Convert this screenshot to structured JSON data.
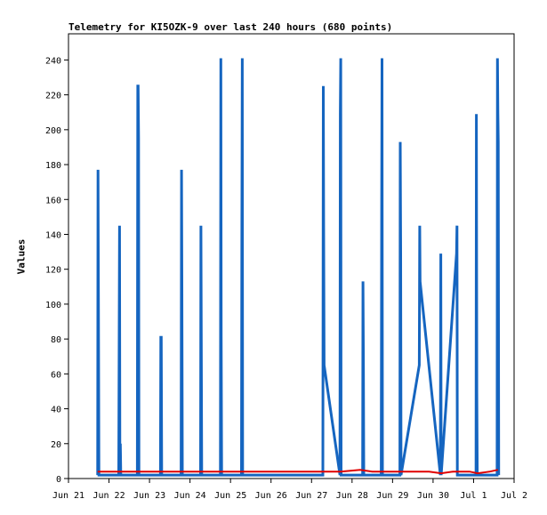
{
  "chart_data": {
    "type": "line",
    "title": "Telemetry for KI5OZK-9 over last 240 hours (680 points)",
    "xlabel": "",
    "ylabel": "Values",
    "ylim": [
      0,
      255
    ],
    "yticks": [
      0,
      20,
      40,
      60,
      80,
      100,
      120,
      140,
      160,
      180,
      200,
      220,
      240
    ],
    "ytick_labels": [
      "0",
      "20",
      "40",
      "60",
      "80",
      "100",
      "120",
      "140",
      "160",
      "180",
      "200",
      "220",
      "240"
    ],
    "xlim_days": [
      0,
      11
    ],
    "xtick_labels": [
      "Jun 21",
      "Jun 22",
      "Jun 23",
      "Jun 24",
      "Jun 25",
      "Jun 26",
      "Jun 27",
      "Jun 28",
      "Jun 29",
      "Jun 30",
      "Jul 1",
      "Jul 2"
    ],
    "grid": false,
    "series": [
      {
        "color": "#1565c0",
        "width": 3,
        "points": [
          [
            0.72,
            2
          ],
          [
            0.73,
            177
          ],
          [
            0.74,
            97
          ],
          [
            0.75,
            2
          ],
          [
            1.24,
            2
          ],
          [
            1.25,
            65
          ],
          [
            1.26,
            145
          ],
          [
            1.27,
            2
          ],
          [
            1.28,
            20
          ],
          [
            1.29,
            2
          ],
          [
            1.7,
            2
          ],
          [
            1.71,
            225
          ],
          [
            1.72,
            225
          ],
          [
            1.73,
            195
          ],
          [
            1.74,
            2
          ],
          [
            2.27,
            2
          ],
          [
            2.28,
            81
          ],
          [
            2.29,
            81
          ],
          [
            2.3,
            2
          ],
          [
            2.78,
            2
          ],
          [
            2.79,
            177
          ],
          [
            2.8,
            112
          ],
          [
            2.81,
            2
          ],
          [
            3.26,
            2
          ],
          [
            3.27,
            145
          ],
          [
            3.28,
            65
          ],
          [
            3.29,
            2
          ],
          [
            3.75,
            2
          ],
          [
            3.76,
            241
          ],
          [
            3.77,
            81
          ],
          [
            3.78,
            2
          ],
          [
            4.27,
            2
          ],
          [
            4.28,
            137
          ],
          [
            4.29,
            241
          ],
          [
            4.3,
            2
          ],
          [
            6.28,
            2
          ],
          [
            6.29,
            225
          ],
          [
            6.3,
            145
          ],
          [
            6.31,
            65
          ],
          [
            6.7,
            2
          ],
          [
            6.71,
            209
          ],
          [
            6.72,
            241
          ],
          [
            6.73,
            2
          ],
          [
            7.26,
            2
          ],
          [
            7.27,
            113
          ],
          [
            7.28,
            65
          ],
          [
            7.29,
            2
          ],
          [
            7.72,
            2
          ],
          [
            7.73,
            153
          ],
          [
            7.74,
            241
          ],
          [
            7.75,
            2
          ],
          [
            8.18,
            2
          ],
          [
            8.19,
            193
          ],
          [
            8.2,
            129
          ],
          [
            8.21,
            2
          ],
          [
            8.66,
            65
          ],
          [
            8.67,
            145
          ],
          [
            8.68,
            113
          ],
          [
            9.18,
            2
          ],
          [
            9.19,
            129
          ],
          [
            9.2,
            2
          ],
          [
            9.58,
            129
          ],
          [
            9.59,
            145
          ],
          [
            9.6,
            2
          ],
          [
            10.06,
            2
          ],
          [
            10.07,
            209
          ],
          [
            10.08,
            49
          ],
          [
            10.09,
            2
          ],
          [
            10.58,
            2
          ],
          [
            10.59,
            241
          ],
          [
            10.6,
            209
          ],
          [
            10.61,
            193
          ],
          [
            10.62,
            2
          ]
        ]
      },
      {
        "color": "#e00000",
        "width": 2,
        "points": [
          [
            0.72,
            4
          ],
          [
            2.0,
            4
          ],
          [
            4.0,
            4
          ],
          [
            6.0,
            4
          ],
          [
            6.72,
            4
          ],
          [
            7.2,
            5
          ],
          [
            7.5,
            4
          ],
          [
            8.0,
            4
          ],
          [
            8.3,
            4
          ],
          [
            8.9,
            4
          ],
          [
            9.2,
            3
          ],
          [
            9.5,
            4
          ],
          [
            9.9,
            4
          ],
          [
            10.1,
            3
          ],
          [
            10.4,
            4
          ],
          [
            10.6,
            5
          ]
        ]
      }
    ]
  }
}
